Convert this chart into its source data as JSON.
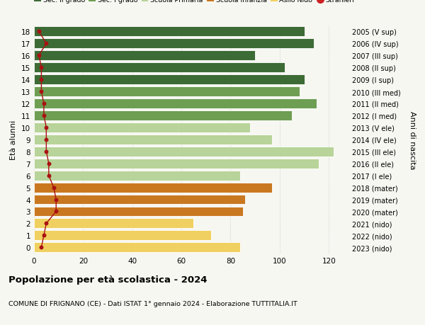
{
  "ages": [
    18,
    17,
    16,
    15,
    14,
    13,
    12,
    11,
    10,
    9,
    8,
    7,
    6,
    5,
    4,
    3,
    2,
    1,
    0
  ],
  "right_labels": [
    "2005 (V sup)",
    "2006 (IV sup)",
    "2007 (III sup)",
    "2008 (II sup)",
    "2009 (I sup)",
    "2010 (III med)",
    "2011 (II med)",
    "2012 (I med)",
    "2013 (V ele)",
    "2014 (IV ele)",
    "2015 (III ele)",
    "2016 (II ele)",
    "2017 (I ele)",
    "2018 (mater)",
    "2019 (mater)",
    "2020 (mater)",
    "2021 (nido)",
    "2022 (nido)",
    "2023 (nido)"
  ],
  "bar_values": [
    110,
    114,
    90,
    102,
    110,
    108,
    115,
    105,
    88,
    97,
    122,
    116,
    84,
    97,
    86,
    85,
    65,
    72,
    84
  ],
  "stranieri_values": [
    2,
    5,
    2,
    3,
    3,
    3,
    4,
    4,
    5,
    5,
    5,
    6,
    6,
    8,
    9,
    9,
    5,
    4,
    3
  ],
  "bar_colors": [
    "#3d6b35",
    "#3d6b35",
    "#3d6b35",
    "#3d6b35",
    "#3d6b35",
    "#6e9e52",
    "#6e9e52",
    "#6e9e52",
    "#b8d49a",
    "#b8d49a",
    "#b8d49a",
    "#b8d49a",
    "#b8d49a",
    "#c97820",
    "#c97820",
    "#c97820",
    "#f0d060",
    "#f0d060",
    "#f0d060"
  ],
  "legend_labels": [
    "Sec. II grado",
    "Sec. I grado",
    "Scuola Primaria",
    "Scuola Infanzia",
    "Asilo Nido",
    "Stranieri"
  ],
  "legend_colors": [
    "#3d6b35",
    "#6e9e52",
    "#b8d49a",
    "#c97820",
    "#f0d060",
    "#cc2222"
  ],
  "stranieri_color": "#aa1111",
  "line_color": "#aa1111",
  "title": "Popolazione per età scolastica - 2024",
  "subtitle": "COMUNE DI FRIGNANO (CE) - Dati ISTAT 1° gennaio 2024 - Elaborazione TUTTITALIA.IT",
  "ylabel_left": "Età alunni",
  "ylabel_right": "Anni di nascita",
  "xlim": [
    0,
    128
  ],
  "xticks": [
    0,
    20,
    40,
    60,
    80,
    100,
    120
  ],
  "background_color": "#f7f7f2",
  "grid_color": "#cccccc",
  "bar_height": 0.82
}
